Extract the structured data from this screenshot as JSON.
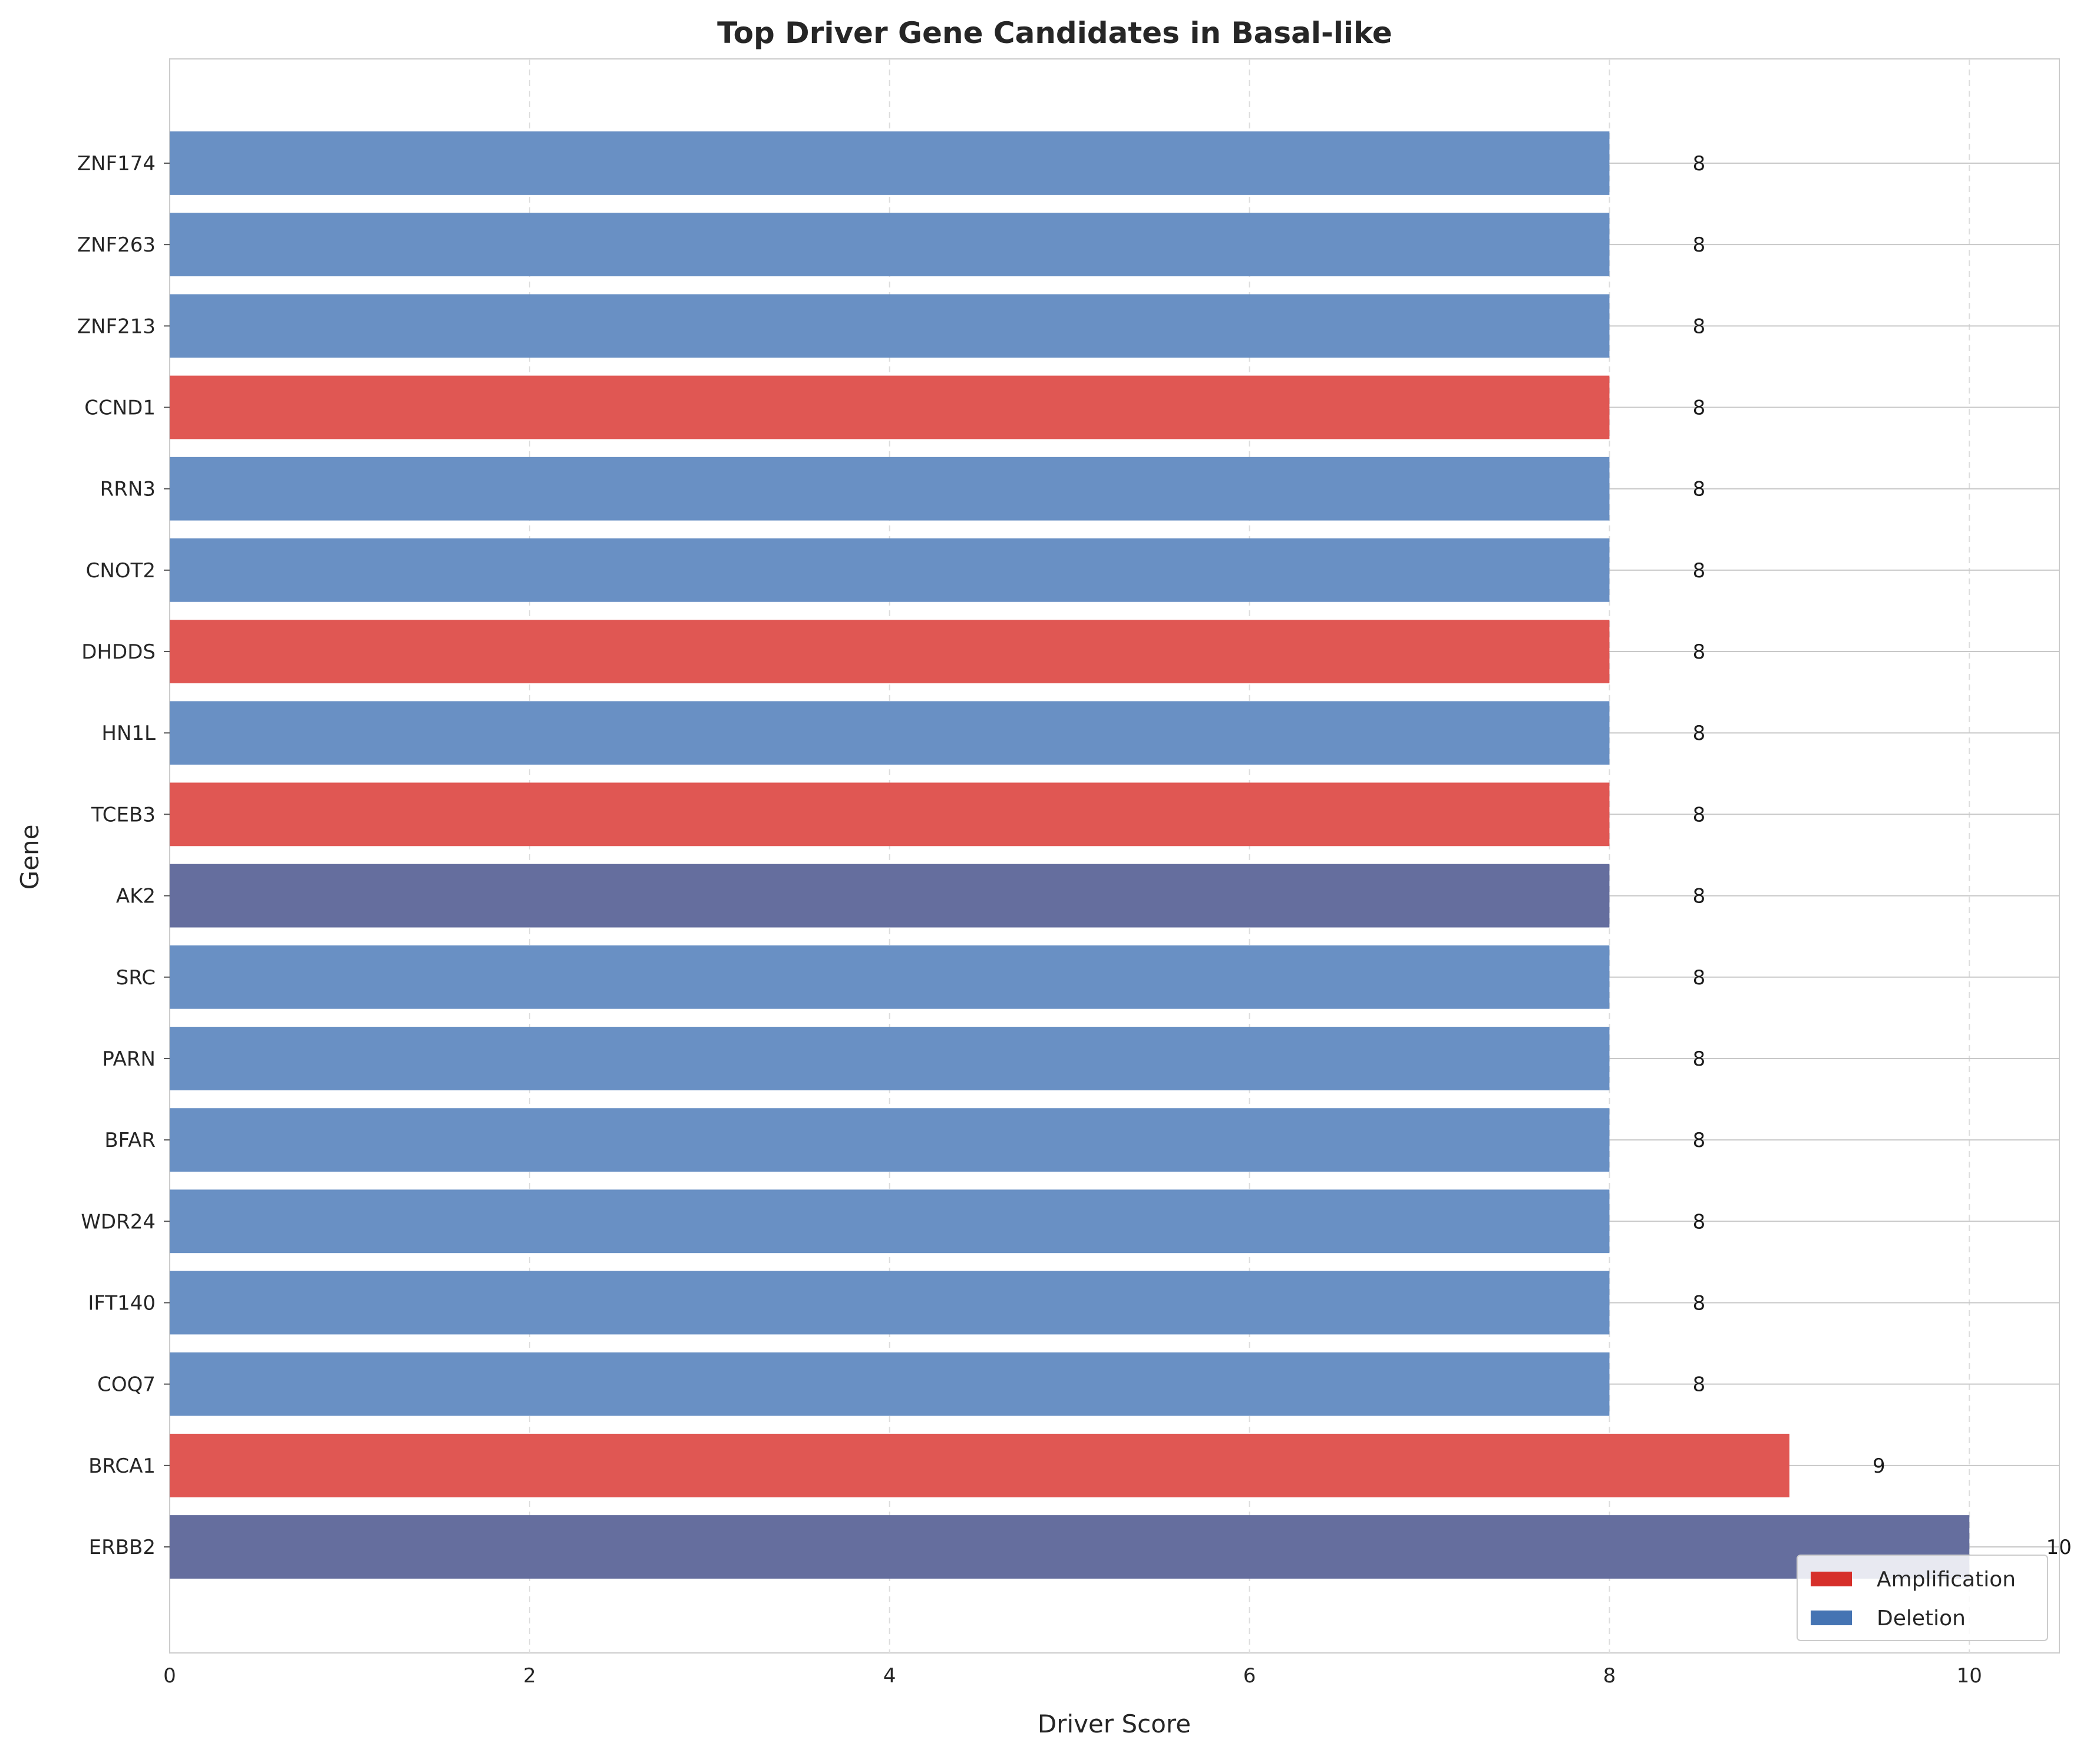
{
  "chart_data": {
    "type": "bar",
    "orientation": "horizontal",
    "title": "Top Driver Gene Candidates in Basal-like",
    "xlabel": "Driver Score",
    "ylabel": "Gene",
    "xlim": [
      0,
      10.5
    ],
    "xticks": [
      0,
      2,
      4,
      6,
      8,
      10
    ],
    "grid": true,
    "legend": {
      "placement": "bottom-right",
      "entries": [
        {
          "label": "Amplification",
          "color": "#d62f2a"
        },
        {
          "label": "Deletion",
          "color": "#4574b3"
        }
      ]
    },
    "colors": {
      "Amplification": "#e05753",
      "Deletion": "#6990c4",
      "Both": "#656e9e"
    },
    "categories": [
      "ZNF174",
      "ZNF263",
      "ZNF213",
      "CCND1",
      "RRN3",
      "CNOT2",
      "DHDDS",
      "HN1L",
      "TCEB3",
      "AK2",
      "SRC",
      "PARN",
      "BFAR",
      "WDR24",
      "IFT140",
      "COQ7",
      "BRCA1",
      "ERBB2"
    ],
    "values": [
      8,
      8,
      8,
      8,
      8,
      8,
      8,
      8,
      8,
      8,
      8,
      8,
      8,
      8,
      8,
      8,
      9,
      10
    ],
    "bar_types": [
      "Deletion",
      "Deletion",
      "Deletion",
      "Amplification",
      "Deletion",
      "Deletion",
      "Amplification",
      "Deletion",
      "Amplification",
      "Both",
      "Deletion",
      "Deletion",
      "Deletion",
      "Deletion",
      "Deletion",
      "Deletion",
      "Amplification",
      "Both"
    ],
    "value_labels": [
      "8",
      "8",
      "8",
      "8",
      "8",
      "8",
      "8",
      "8",
      "8",
      "8",
      "8",
      "8",
      "8",
      "8",
      "8",
      "8",
      "9",
      "10"
    ]
  }
}
